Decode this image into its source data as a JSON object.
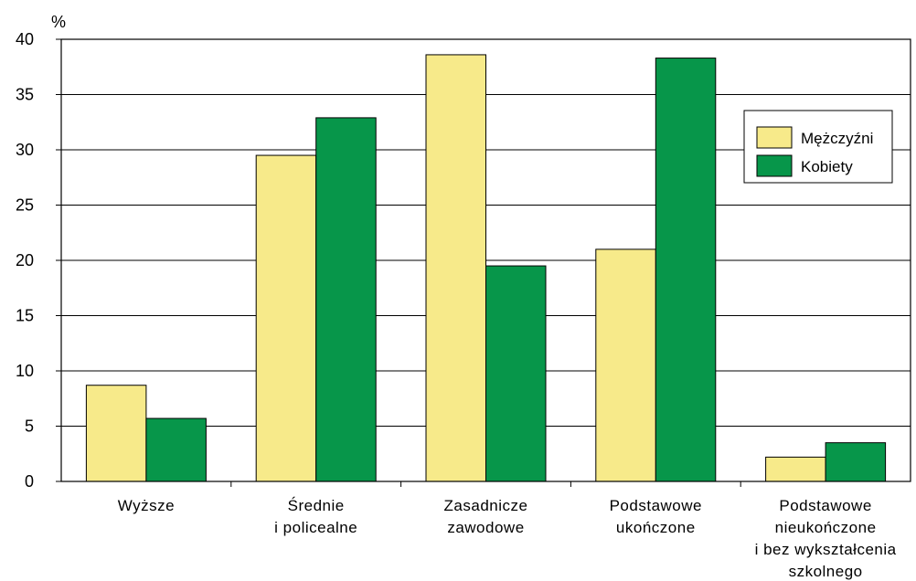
{
  "chart_data": {
    "type": "bar",
    "ylabel": "%",
    "ylim": [
      0,
      40
    ],
    "yticks": [
      0,
      5,
      10,
      15,
      20,
      25,
      30,
      35,
      40
    ],
    "grid": true,
    "legend_position": "right",
    "categories": [
      [
        "Wyższe"
      ],
      [
        "Średnie",
        "i policealne"
      ],
      [
        "Zasadnicze",
        "zawodowe"
      ],
      [
        "Podstawowe",
        "ukończone"
      ],
      [
        "Podstawowe",
        "nieukończone",
        "i bez wykształcenia",
        "szkolnego"
      ]
    ],
    "series": [
      {
        "name": "Mężczyźni",
        "color": "#f7ea8a",
        "values": [
          8.7,
          29.5,
          38.6,
          21.0,
          2.2
        ]
      },
      {
        "name": "Kobiety",
        "color": "#07964a",
        "values": [
          5.7,
          32.9,
          19.5,
          38.3,
          3.5
        ]
      }
    ]
  }
}
